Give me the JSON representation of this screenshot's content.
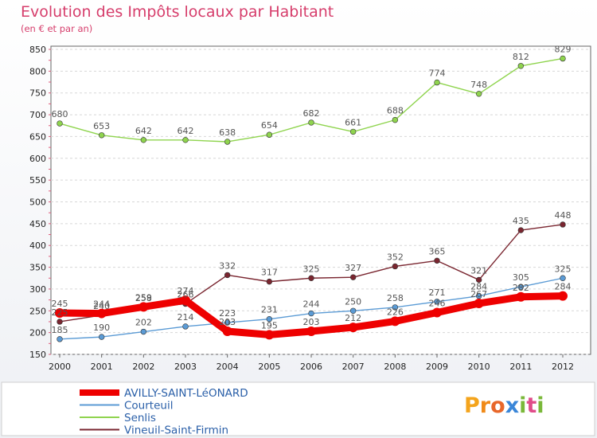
{
  "chart_data": {
    "type": "line",
    "title": "Evolution des Impôts locaux par Habitant",
    "subtitle": "(en € et par an)",
    "xlabel": "",
    "ylabel": "",
    "categories": [
      "2000",
      "2001",
      "2002",
      "2003",
      "2004",
      "2005",
      "2006",
      "2007",
      "2008",
      "2009",
      "2010",
      "2011",
      "2012"
    ],
    "ylim": [
      150,
      850
    ],
    "yticks": [
      150,
      200,
      250,
      300,
      350,
      400,
      450,
      500,
      550,
      600,
      650,
      700,
      750,
      800,
      850
    ],
    "grid": "horizontal",
    "legend_position": "bottom-left",
    "series": [
      {
        "name": "AVILLY-SAINT-LéONARD",
        "color": "#ee0000",
        "values": [
          245,
          244,
          259,
          274,
          203,
          195,
          203,
          212,
          226,
          246,
          267,
          282,
          284
        ]
      },
      {
        "name": "Courteuil",
        "color": "#5b9bd5",
        "values": [
          185,
          190,
          202,
          214,
          223,
          231,
          244,
          250,
          258,
          271,
          284,
          305,
          325
        ]
      },
      {
        "name": "Senlis",
        "color": "#8fd44e",
        "values": [
          680,
          653,
          642,
          642,
          638,
          654,
          682,
          661,
          688,
          774,
          748,
          812,
          829
        ]
      },
      {
        "name": "Vineuil-Saint-Firmin",
        "color": "#7a2630",
        "values": [
          225,
          240,
          258,
          266,
          332,
          317,
          325,
          327,
          352,
          365,
          321,
          435,
          448
        ]
      }
    ]
  },
  "brand": {
    "letters": [
      "P",
      "r",
      "o",
      "x",
      "i",
      "t",
      "i"
    ]
  }
}
